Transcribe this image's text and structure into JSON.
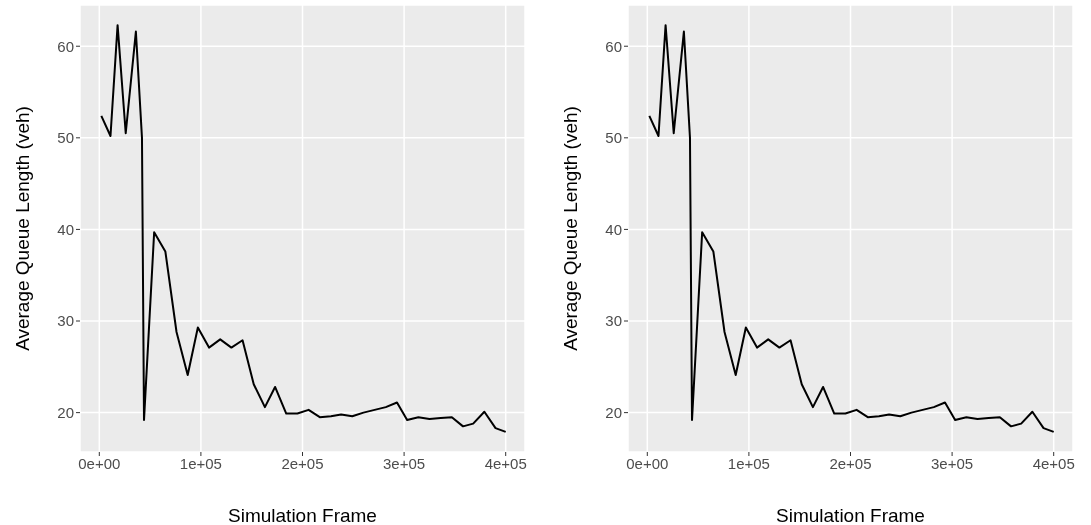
{
  "chart_data": [
    {
      "type": "line",
      "xlabel": "Simulation Frame",
      "ylabel": "Average Queue Length (veh)",
      "color": "#000000",
      "grid": true,
      "x": [
        2000,
        11000,
        18000,
        26000,
        36000,
        42000,
        44000,
        54000,
        65000,
        76000,
        87000,
        97000,
        108000,
        119000,
        130000,
        141000,
        152000,
        163000,
        173000,
        184000,
        195000,
        206000,
        217000,
        228000,
        238000,
        249000,
        260000,
        271000,
        282000,
        293000,
        303000,
        314000,
        325000,
        336000,
        347000,
        358000,
        368000,
        379000,
        390000,
        400000
      ],
      "values": [
        52.4,
        50.2,
        62.3,
        50.5,
        61.6,
        50.0,
        19.2,
        39.7,
        37.6,
        28.8,
        24.1,
        29.3,
        27.1,
        28.0,
        27.1,
        27.9,
        23.1,
        20.6,
        22.8,
        19.9,
        19.9,
        20.3,
        19.5,
        19.6,
        19.8,
        19.6,
        20.0,
        20.3,
        20.6,
        21.1,
        19.2,
        19.5,
        19.3,
        19.4,
        19.5,
        18.5,
        18.8,
        20.1,
        18.3,
        17.9
      ],
      "xlim": [
        -19000,
        419000
      ],
      "ylim": [
        15.7,
        64.5
      ],
      "xticks": [
        {
          "value": 0,
          "label": "0e+00"
        },
        {
          "value": 100000,
          "label": "1e+05"
        },
        {
          "value": 200000,
          "label": "2e+05"
        },
        {
          "value": 300000,
          "label": "3e+05"
        },
        {
          "value": 400000,
          "label": "4e+05"
        }
      ],
      "yticks": [
        20,
        30,
        40,
        50,
        60
      ]
    },
    {
      "type": "line",
      "xlabel": "Simulation Frame",
      "ylabel": "Average Queue Length (veh)",
      "color": "#000000",
      "grid": true,
      "x": [
        2000,
        11000,
        18000,
        26000,
        36000,
        42000,
        44000,
        54000,
        65000,
        76000,
        87000,
        97000,
        108000,
        119000,
        130000,
        141000,
        152000,
        163000,
        173000,
        184000,
        195000,
        206000,
        217000,
        228000,
        238000,
        249000,
        260000,
        271000,
        282000,
        293000,
        303000,
        314000,
        325000,
        336000,
        347000,
        358000,
        368000,
        379000,
        390000,
        400000
      ],
      "values": [
        52.4,
        50.2,
        62.3,
        50.5,
        61.6,
        50.0,
        19.2,
        39.7,
        37.6,
        28.8,
        24.1,
        29.3,
        27.1,
        28.0,
        27.1,
        27.9,
        23.1,
        20.6,
        22.8,
        19.9,
        19.9,
        20.3,
        19.5,
        19.6,
        19.8,
        19.6,
        20.0,
        20.3,
        20.6,
        21.1,
        19.2,
        19.5,
        19.3,
        19.4,
        19.5,
        18.5,
        18.8,
        20.1,
        18.3,
        17.9
      ],
      "xlim": [
        -19000,
        419000
      ],
      "ylim": [
        15.7,
        64.5
      ],
      "xticks": [
        {
          "value": 0,
          "label": "0e+00"
        },
        {
          "value": 100000,
          "label": "1e+05"
        },
        {
          "value": 200000,
          "label": "2e+05"
        },
        {
          "value": 300000,
          "label": "3e+05"
        },
        {
          "value": 400000,
          "label": "4e+05"
        }
      ],
      "yticks": [
        20,
        30,
        40,
        50,
        60
      ]
    }
  ]
}
